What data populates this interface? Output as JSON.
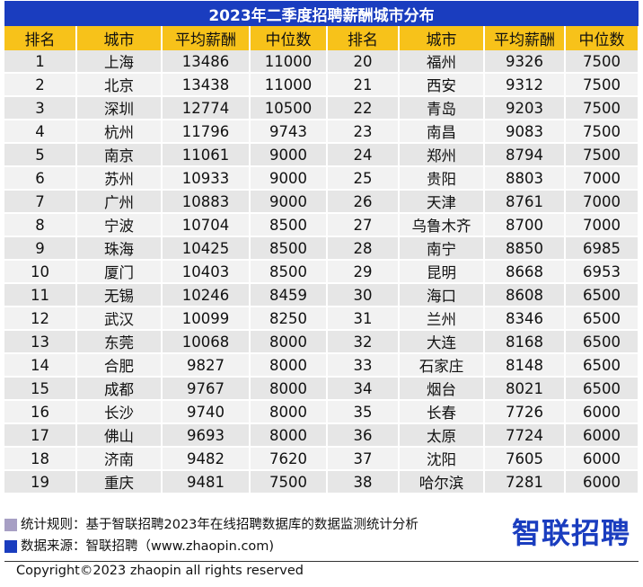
{
  "title": "2023年二季度招聘薪酬城市分布",
  "headers": [
    "排名",
    "城市",
    "平均薪酬",
    "中位数",
    "排名",
    "城市",
    "平均薪酬",
    "中位数"
  ],
  "rows": [
    [
      "1",
      "上海",
      "13486",
      "11000",
      "20",
      "福州",
      "9326",
      "7500"
    ],
    [
      "2",
      "北京",
      "13438",
      "11000",
      "21",
      "西安",
      "9312",
      "7500"
    ],
    [
      "3",
      "深圳",
      "12774",
      "10500",
      "22",
      "青岛",
      "9203",
      "7500"
    ],
    [
      "4",
      "杭州",
      "11796",
      "9743",
      "23",
      "南昌",
      "9083",
      "7500"
    ],
    [
      "5",
      "南京",
      "11061",
      "9000",
      "24",
      "郑州",
      "8794",
      "7500"
    ],
    [
      "6",
      "苏州",
      "10933",
      "9000",
      "25",
      "贵阳",
      "8803",
      "7000"
    ],
    [
      "7",
      "广州",
      "10883",
      "9000",
      "26",
      "天津",
      "8761",
      "7000"
    ],
    [
      "8",
      "宁波",
      "10704",
      "8500",
      "27",
      "乌鲁木齐",
      "8700",
      "7000"
    ],
    [
      "9",
      "珠海",
      "10425",
      "8500",
      "28",
      "南宁",
      "8850",
      "6985"
    ],
    [
      "10",
      "厦门",
      "10403",
      "8500",
      "29",
      "昆明",
      "8668",
      "6953"
    ],
    [
      "11",
      "无锡",
      "10246",
      "8459",
      "30",
      "海口",
      "8608",
      "6500"
    ],
    [
      "12",
      "武汉",
      "10099",
      "8250",
      "31",
      "兰州",
      "8346",
      "6500"
    ],
    [
      "13",
      "东莞",
      "10068",
      "8000",
      "32",
      "大连",
      "8168",
      "6500"
    ],
    [
      "14",
      "合肥",
      "9827",
      "8000",
      "33",
      "石家庄",
      "8148",
      "6500"
    ],
    [
      "15",
      "成都",
      "9767",
      "8000",
      "34",
      "烟台",
      "8021",
      "6500"
    ],
    [
      "16",
      "长沙",
      "9740",
      "8000",
      "35",
      "长春",
      "7726",
      "6000"
    ],
    [
      "17",
      "佛山",
      "9693",
      "8000",
      "36",
      "太原",
      "7724",
      "6000"
    ],
    [
      "18",
      "济南",
      "9482",
      "7620",
      "37",
      "沈阳",
      "7605",
      "6000"
    ],
    [
      "19",
      "重庆",
      "9481",
      "7500",
      "38",
      "哈尔滨",
      "7281",
      "6000"
    ]
  ],
  "notes": {
    "rule": "统计规则：基于智联招聘2023年在线招聘数据库的数据监测统计分析",
    "source": "数据来源：智联招聘（www.zhaopin.com)"
  },
  "logo_text": "智联招聘",
  "copyright": "Copyright©2023 zhaopin all rights reserved",
  "colors": {
    "title_bg": "#1a3dbf",
    "header_bg": "#f7c21a",
    "row_odd": "#e6e6e6",
    "row_even": "#f2f2f2",
    "swatch_rule": "#a79fc4",
    "swatch_source": "#1a3dbf",
    "logo": "#1a3dbf"
  }
}
